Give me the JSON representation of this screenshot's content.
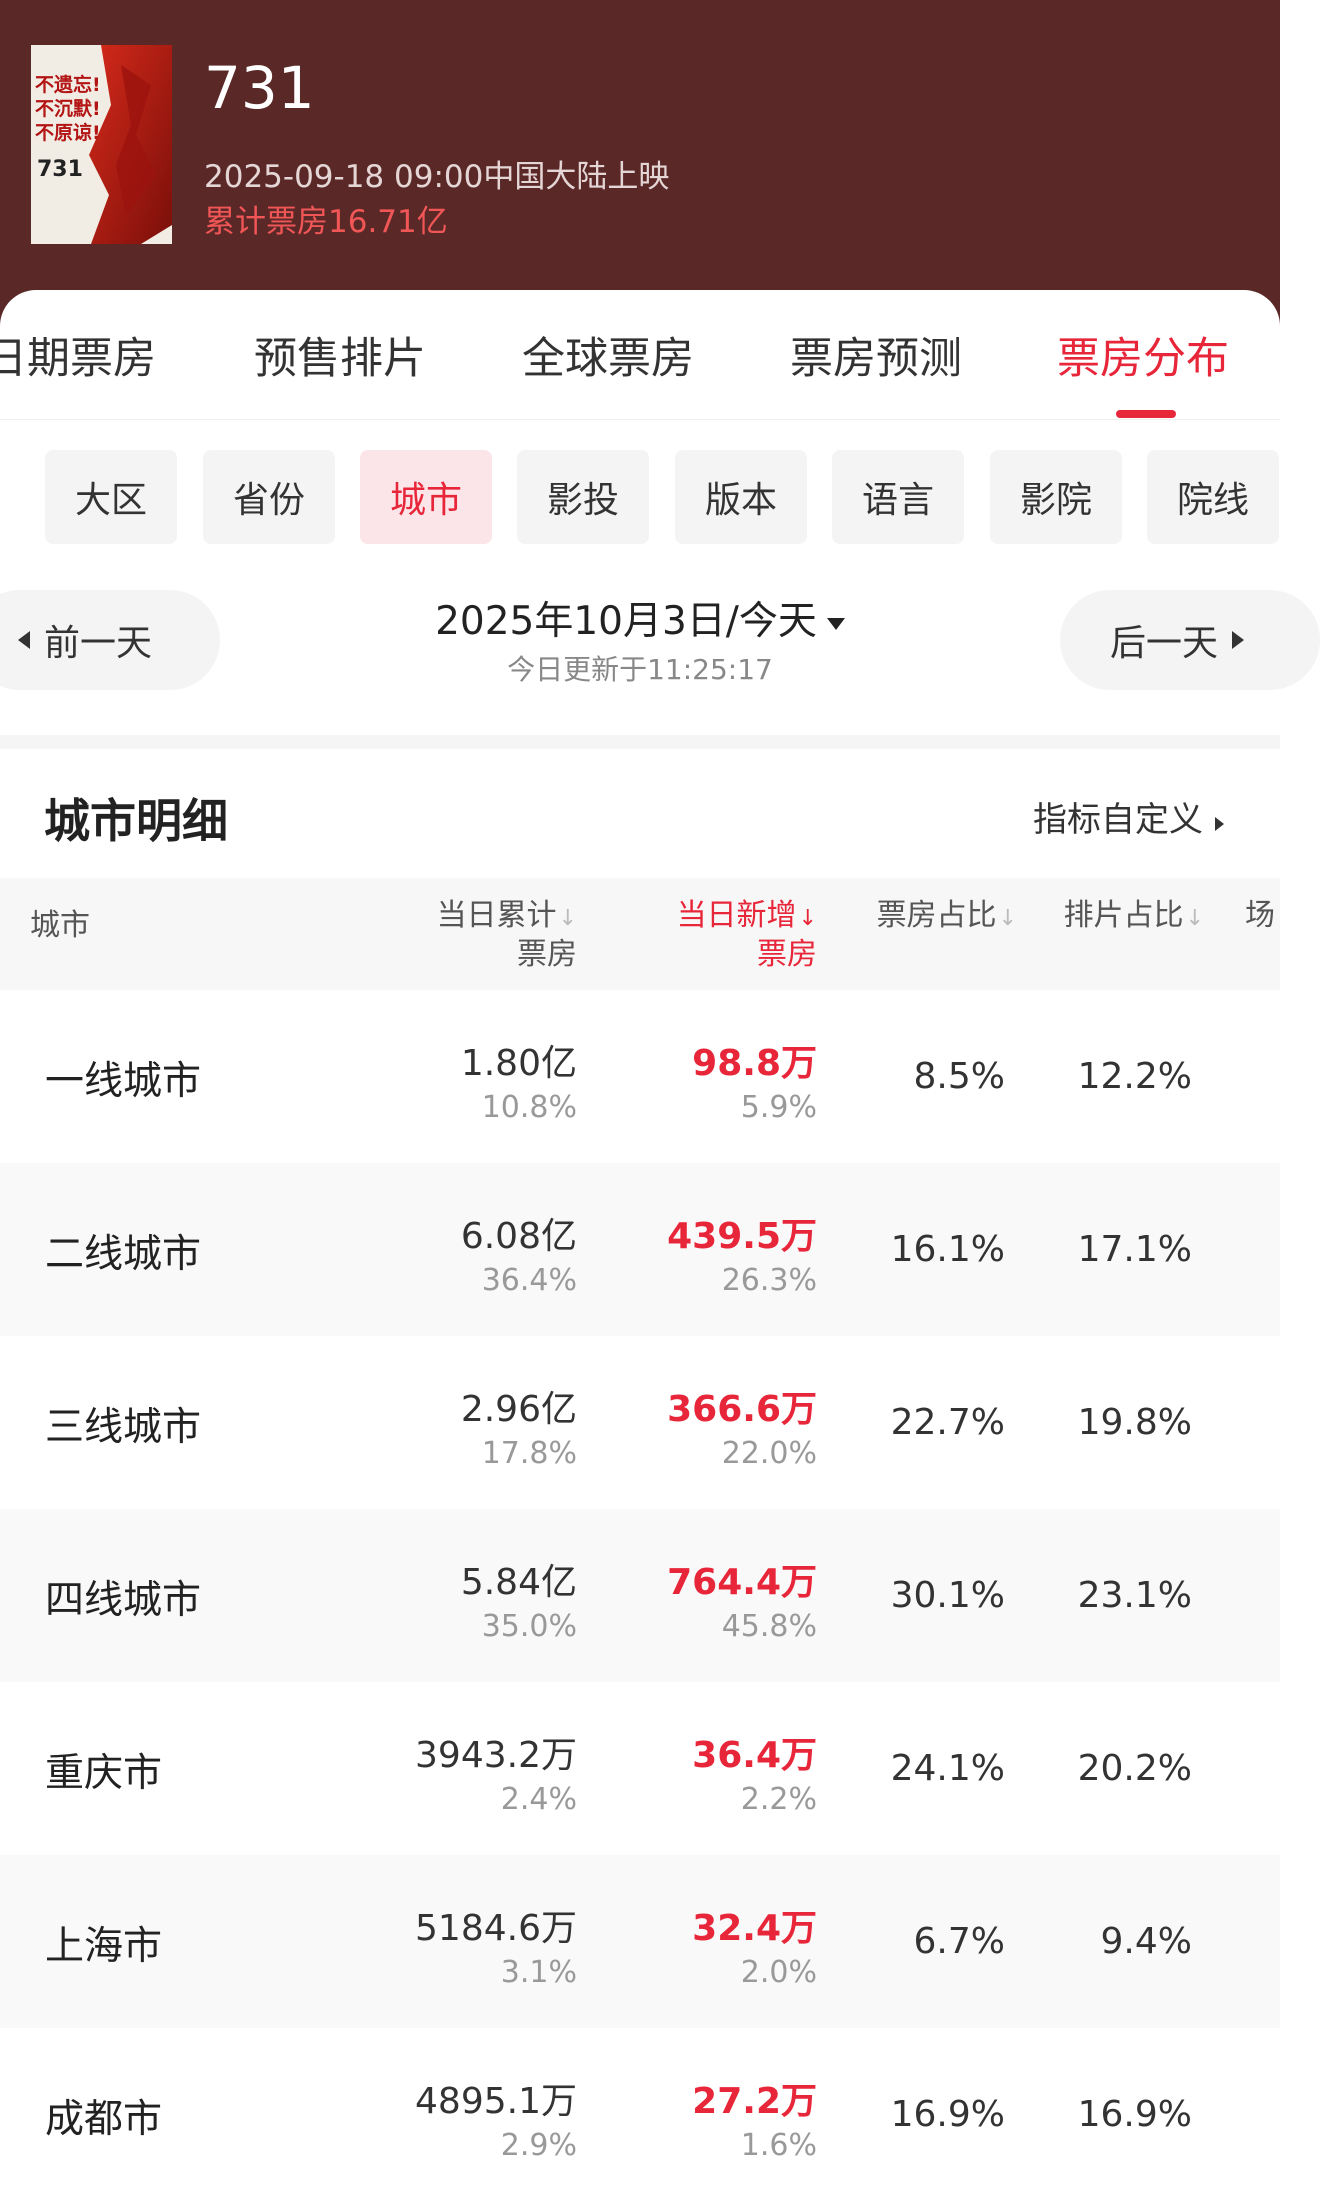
{
  "movie": {
    "poster_text": "不遗忘!\n不沉默!\n不原谅!",
    "poster_number": "731",
    "title": "731",
    "release": "2025-09-18 09:00中国大陆上映",
    "total_box_office": "累计票房16.71亿"
  },
  "tabs": [
    {
      "label": "日期票房"
    },
    {
      "label": "预售排片"
    },
    {
      "label": "全球票房"
    },
    {
      "label": "票房预测"
    },
    {
      "label": "票房分布",
      "active": true
    }
  ],
  "chips": [
    {
      "label": "大区"
    },
    {
      "label": "省份"
    },
    {
      "label": "城市",
      "active": true
    },
    {
      "label": "影投"
    },
    {
      "label": "版本"
    },
    {
      "label": "语言"
    },
    {
      "label": "影院"
    },
    {
      "label": "院线"
    }
  ],
  "date_nav": {
    "prev_label": "前一天",
    "next_label": "后一天",
    "date": "2025年10月3日/今天",
    "updated": "今日更新于11:25:17"
  },
  "section": {
    "title": "城市明细",
    "custom_label": "指标自定义"
  },
  "table": {
    "headers": {
      "city": "城市",
      "daily_total_1": "当日累计",
      "daily_total_2": "票房",
      "daily_new_1": "当日新增",
      "daily_new_2": "票房",
      "box_share": "票房占比",
      "screen_share": "排片占比",
      "extra": "场"
    },
    "rows": [
      {
        "city": "一线城市",
        "total": "1.80亿",
        "total_pct": "10.8%",
        "new": "98.8万",
        "new_pct": "5.9%",
        "box_share": "8.5%",
        "screen_share": "12.2%"
      },
      {
        "city": "二线城市",
        "total": "6.08亿",
        "total_pct": "36.4%",
        "new": "439.5万",
        "new_pct": "26.3%",
        "box_share": "16.1%",
        "screen_share": "17.1%"
      },
      {
        "city": "三线城市",
        "total": "2.96亿",
        "total_pct": "17.8%",
        "new": "366.6万",
        "new_pct": "22.0%",
        "box_share": "22.7%",
        "screen_share": "19.8%"
      },
      {
        "city": "四线城市",
        "total": "5.84亿",
        "total_pct": "35.0%",
        "new": "764.4万",
        "new_pct": "45.8%",
        "box_share": "30.1%",
        "screen_share": "23.1%"
      },
      {
        "city": "重庆市",
        "total": "3943.2万",
        "total_pct": "2.4%",
        "new": "36.4万",
        "new_pct": "2.2%",
        "box_share": "24.1%",
        "screen_share": "20.2%"
      },
      {
        "city": "上海市",
        "total": "5184.6万",
        "total_pct": "3.1%",
        "new": "32.4万",
        "new_pct": "2.0%",
        "box_share": "6.7%",
        "screen_share": "9.4%"
      },
      {
        "city": "成都市",
        "total": "4895.1万",
        "total_pct": "2.9%",
        "new": "27.2万",
        "new_pct": "1.6%",
        "box_share": "16.9%",
        "screen_share": "16.9%"
      }
    ]
  },
  "colors": {
    "header_bg": "#5b2828",
    "accent": "#e8263a"
  }
}
